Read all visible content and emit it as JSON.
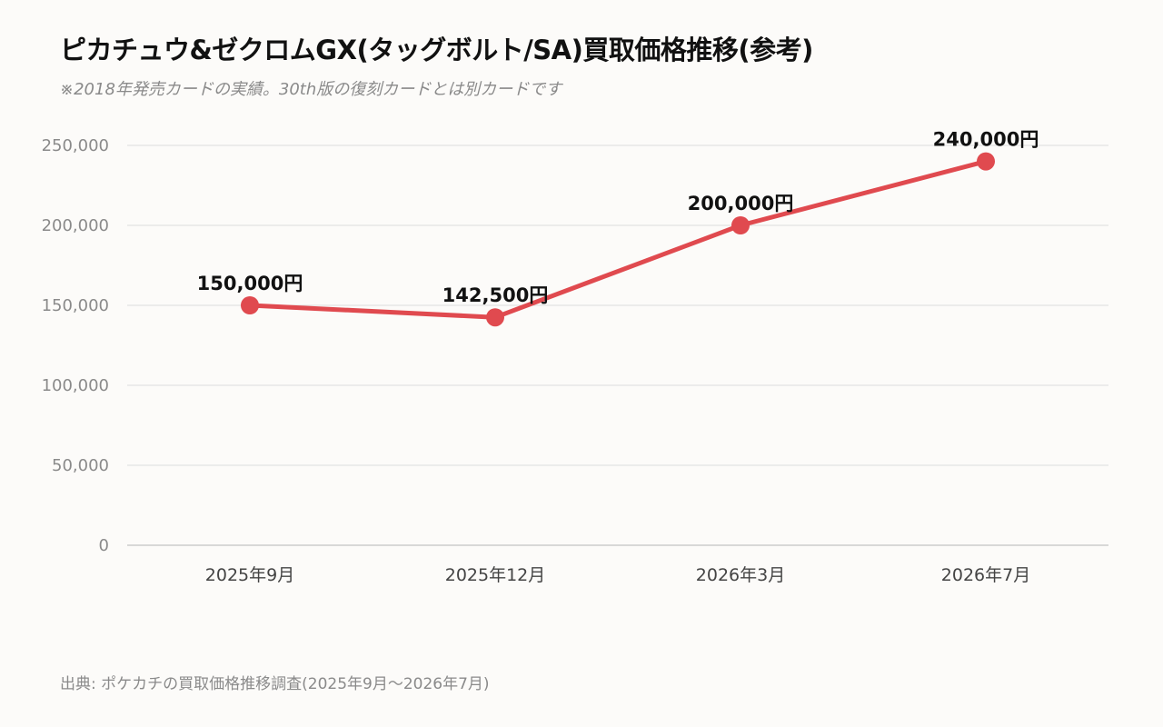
{
  "title": "ピカチュウ&ゼクロムGX(タッグボルト/SA)買取価格推移(参考)",
  "subtitle": "※2018年発売カードの実績。30th版の復刻カードとは別カードです",
  "source": "出典: ポケカチの買取価格推移調査(2025年9月～2026年7月)",
  "chart_data": {
    "type": "line",
    "categories": [
      "2025年9月",
      "2025年12月",
      "2026年3月",
      "2026年7月"
    ],
    "series": [
      {
        "values": [
          150000,
          142500,
          200000,
          240000
        ]
      }
    ],
    "data_labels": [
      "150,000円",
      "142,500円",
      "200,000円",
      "240,000円"
    ],
    "y_ticks": [
      0,
      50000,
      100000,
      150000,
      200000,
      250000
    ],
    "y_tick_labels": [
      "0",
      "50,000",
      "100,000",
      "150,000",
      "200,000",
      "250,000"
    ],
    "ylim": [
      0,
      250000
    ],
    "grid": true,
    "line_color": "#e04a4f",
    "grid_color": "#dddddd",
    "axis_color": "#cccccc"
  }
}
